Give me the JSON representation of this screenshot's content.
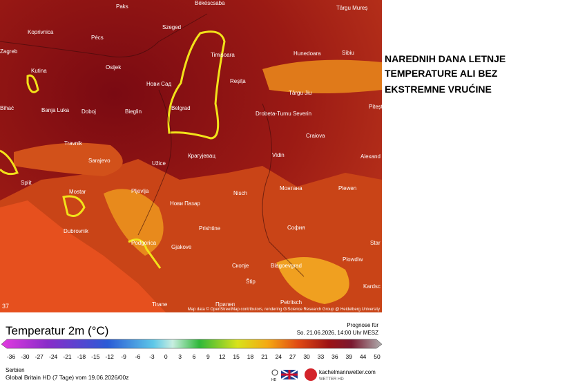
{
  "headline": [
    "NAREDNIH DANA LETNJE",
    "TEMPERATURE ALI BEZ",
    "EKSTREMNE VRUĆINE"
  ],
  "map": {
    "cities": [
      "Paks",
      "Békéscsaba",
      "Târgu Mureș",
      "Koprivnica",
      "Pécs",
      "Szeged",
      "Zagreb",
      "Osijek",
      "Timișoara",
      "Hunedoara",
      "Sibiu",
      "Kutina",
      "Нови Сад",
      "Reșița",
      "Târgu Jiu",
      "Pitești",
      "Bihać",
      "Banja Luka",
      "Doboj",
      "Bieglin",
      "Belgrad",
      "Drobeta-Turnu Severin",
      "Craiova",
      "Travnik",
      "Sarajevo",
      "Užice",
      "Крагујевац",
      "Vidin",
      "Alexand",
      "Split",
      "Mostar",
      "Pljevlja",
      "Nisch",
      "Монтана",
      "Plewen",
      "Нови Пазар",
      "Dubrovnik",
      "Podgorica",
      "Prishtine",
      "София",
      "Star",
      "Gjakove",
      "Скопје",
      "Blagoevgrad",
      "Plowdiw",
      "Štip",
      "Kardsc",
      "Tirane",
      "Прилеп",
      "Petritsch"
    ],
    "corner_value": "37",
    "attribution": "Map data © OpenStreetMap contributors, rendering GIScience Research Group @ Heidelberg University"
  },
  "legend": {
    "title": "Temperatur 2m (°C)",
    "ticks": [
      -36,
      -30,
      -27,
      -24,
      -21,
      -18,
      -15,
      -12,
      -9,
      -6,
      -3,
      0,
      3,
      6,
      9,
      12,
      15,
      18,
      21,
      24,
      27,
      30,
      33,
      36,
      39,
      44,
      50
    ]
  },
  "forecast": {
    "label": "Prognose für",
    "time": "So. 21.06.2026, 14:00 Uhr MESZ"
  },
  "footer": {
    "region": "Serbien",
    "model": "Global Britain HD (7 Tage) vom 19.06.2026/00z",
    "logo_top": "kachelmannwetter.com",
    "logo_bottom": "WETTER HD",
    "hd": "HD"
  }
}
